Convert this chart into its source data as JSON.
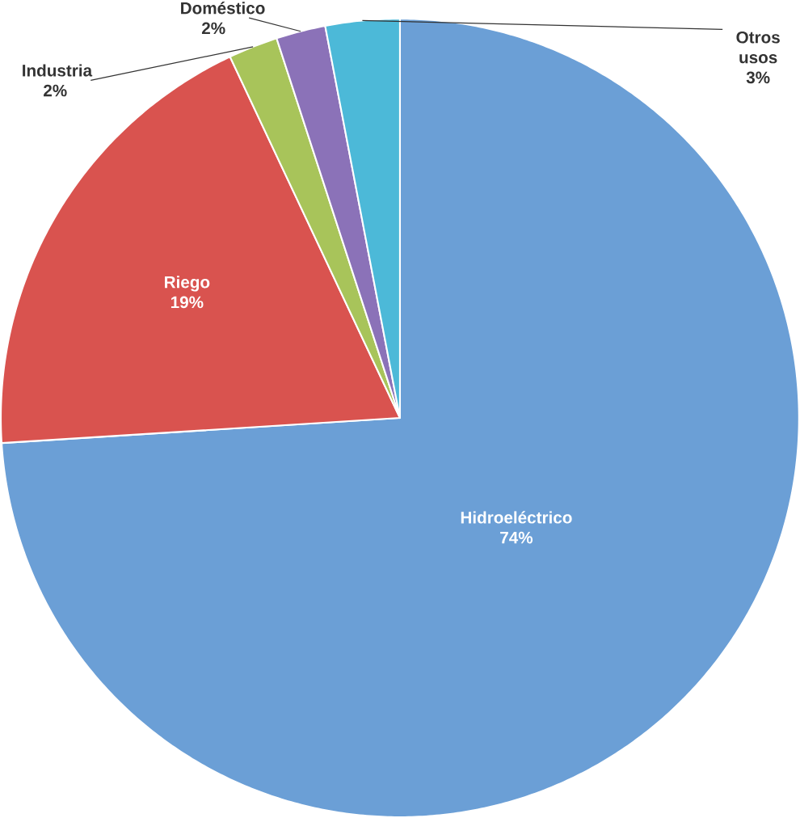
{
  "chart_data": {
    "type": "pie",
    "categories": [
      "Hidroeléctrico",
      "Riego",
      "Industria",
      "Doméstico",
      "Otros usos"
    ],
    "values": [
      74,
      19,
      2,
      2,
      3
    ],
    "value_labels": [
      "74%",
      "19%",
      "2%",
      "2%",
      "3%"
    ],
    "colors": [
      "#6b9fd6",
      "#d9534f",
      "#a8c45a",
      "#8b72b8",
      "#4cb9d8"
    ]
  }
}
